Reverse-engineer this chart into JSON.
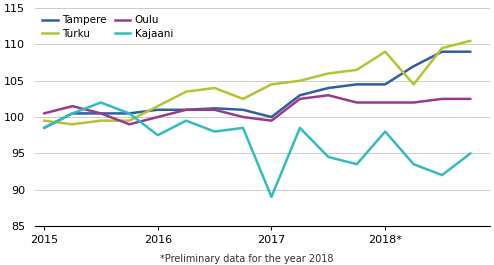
{
  "footnote": "*Preliminary data for the year 2018",
  "ylim": [
    85,
    115
  ],
  "yticks": [
    85,
    90,
    95,
    100,
    105,
    110,
    115
  ],
  "series": {
    "Tampere": {
      "color": "#2e5fa3",
      "linewidth": 1.8,
      "x": [
        2015.0,
        2015.25,
        2015.5,
        2015.75,
        2016.0,
        2016.25,
        2016.5,
        2016.75,
        2017.0,
        2017.25,
        2017.5,
        2017.75,
        2018.0,
        2018.25,
        2018.5,
        2018.75
      ],
      "y": [
        98.5,
        100.5,
        100.5,
        100.5,
        101.0,
        101.0,
        101.2,
        101.0,
        100.0,
        103.0,
        104.0,
        104.5,
        104.5,
        107.0,
        109.0,
        109.0
      ]
    },
    "Turku": {
      "color": "#b5c233",
      "linewidth": 1.8,
      "x": [
        2015.0,
        2015.25,
        2015.5,
        2015.75,
        2016.0,
        2016.25,
        2016.5,
        2016.75,
        2017.0,
        2017.25,
        2017.5,
        2017.75,
        2018.0,
        2018.25,
        2018.5,
        2018.75
      ],
      "y": [
        99.5,
        99.0,
        99.5,
        99.5,
        101.5,
        103.5,
        104.0,
        102.5,
        104.5,
        105.0,
        106.0,
        106.5,
        109.0,
        104.5,
        109.5,
        110.5
      ]
    },
    "Oulu": {
      "color": "#9b3a8c",
      "linewidth": 1.8,
      "x": [
        2015.0,
        2015.25,
        2015.5,
        2015.75,
        2016.0,
        2016.25,
        2016.5,
        2016.75,
        2017.0,
        2017.25,
        2017.5,
        2017.75,
        2018.0,
        2018.25,
        2018.5,
        2018.75
      ],
      "y": [
        100.5,
        101.5,
        100.5,
        99.0,
        100.0,
        101.0,
        101.0,
        100.0,
        99.5,
        102.5,
        103.0,
        102.0,
        102.0,
        102.0,
        102.5,
        102.5
      ]
    },
    "Kajaani": {
      "color": "#33bcbc",
      "linewidth": 1.8,
      "x": [
        2015.0,
        2015.25,
        2015.5,
        2015.75,
        2016.0,
        2016.25,
        2016.5,
        2016.75,
        2017.0,
        2017.25,
        2017.5,
        2017.75,
        2018.0,
        2018.25,
        2018.5,
        2018.75
      ],
      "y": [
        98.5,
        100.5,
        102.0,
        100.5,
        97.5,
        99.5,
        98.0,
        98.5,
        89.0,
        98.5,
        94.5,
        93.5,
        98.0,
        93.5,
        92.0,
        95.0
      ]
    }
  },
  "xticks": [
    2015,
    2016,
    2017,
    2018
  ],
  "xticklabels": [
    "2015",
    "2016",
    "2017",
    "2018*"
  ],
  "xlim": [
    2014.92,
    2018.92
  ],
  "legend_col1": [
    "Tampere",
    "Oulu"
  ],
  "legend_col2": [
    "Turku",
    "Kajaani"
  ],
  "background_color": "#ffffff",
  "grid_color": "#cccccc"
}
